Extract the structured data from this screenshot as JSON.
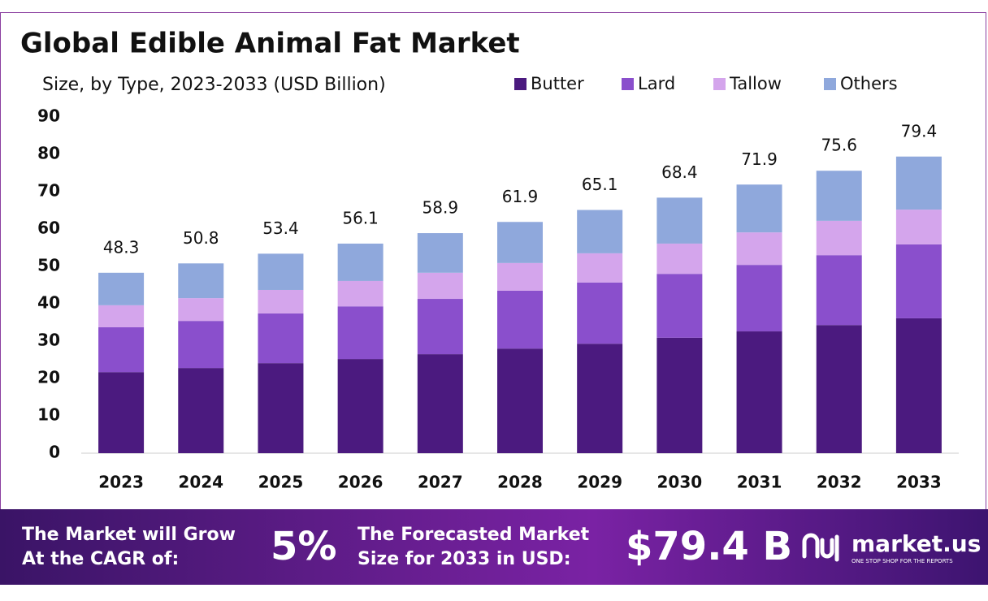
{
  "chart_data": {
    "type": "stacked-bar",
    "title": "Global Edible Animal Fat Market",
    "subtitle": "Size, by Type, 2023-2033 (USD Billion)",
    "categories": [
      "2023",
      "2024",
      "2025",
      "2026",
      "2027",
      "2028",
      "2029",
      "2030",
      "2031",
      "2032",
      "2033"
    ],
    "series": [
      {
        "name": "Butter",
        "color": "#4b1a7f",
        "values": [
          21.7,
          22.8,
          24.1,
          25.2,
          26.5,
          28.0,
          29.3,
          30.9,
          32.6,
          34.3,
          36.1
        ]
      },
      {
        "name": "Lard",
        "color": "#8a4fcc",
        "values": [
          12.0,
          12.6,
          13.3,
          14.1,
          14.8,
          15.5,
          16.4,
          17.1,
          17.8,
          18.7,
          19.8
        ]
      },
      {
        "name": "Tallow",
        "color": "#d4a5ec",
        "values": [
          5.9,
          6.1,
          6.3,
          6.8,
          7.0,
          7.4,
          7.8,
          8.1,
          8.7,
          9.2,
          9.3
        ]
      },
      {
        "name": "Others",
        "color": "#8fa8dc",
        "values": [
          8.7,
          9.3,
          9.7,
          10.0,
          10.6,
          11.0,
          11.6,
          12.3,
          12.8,
          13.4,
          14.2
        ]
      }
    ],
    "totals": [
      48.3,
      50.8,
      53.4,
      56.1,
      58.9,
      61.9,
      65.1,
      68.4,
      71.9,
      75.6,
      79.4
    ],
    "ylim": [
      0,
      90
    ],
    "yticks": [
      0,
      10,
      20,
      30,
      40,
      50,
      60,
      70,
      80,
      90
    ],
    "grid": false,
    "legend": "top-right"
  },
  "footer": {
    "cagr_text_1": "The Market will Grow",
    "cagr_text_2": "At the CAGR of:",
    "cagr": "5%",
    "forecast_text_1": "The Forecasted Market",
    "forecast_text_2": "Size for 2033 in USD:",
    "forecast": "$79.4 B",
    "brand": "market.us",
    "tagline": "ONE STOP SHOP FOR THE REPORTS"
  }
}
